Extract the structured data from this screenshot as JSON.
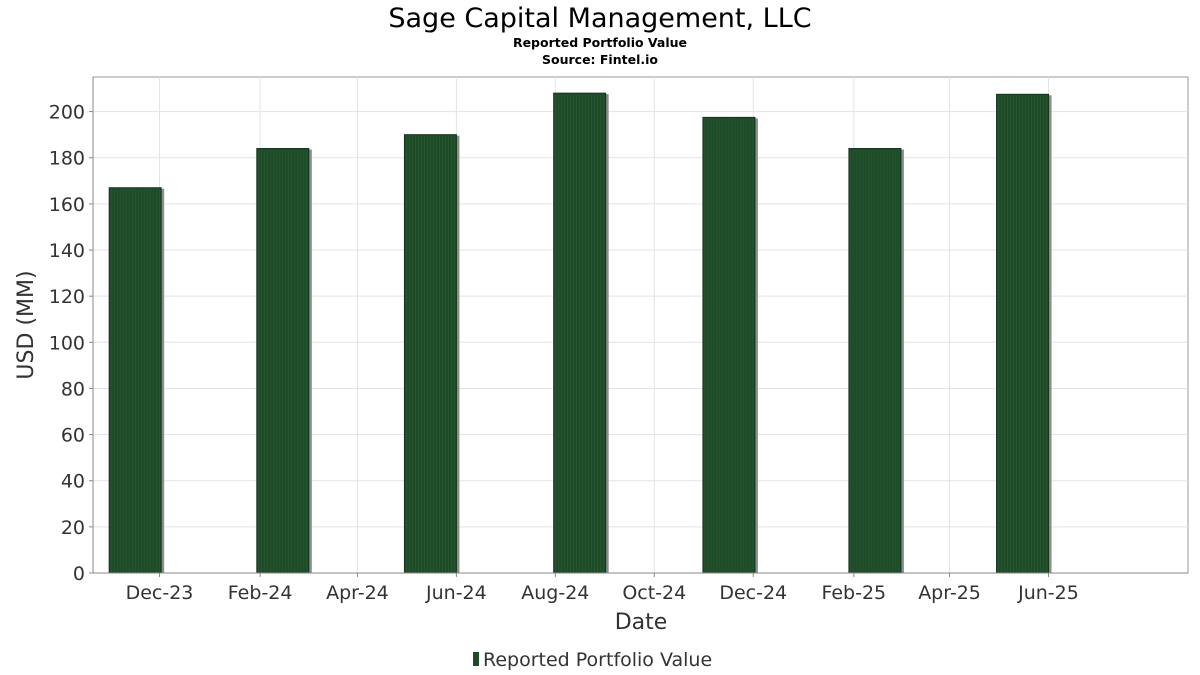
{
  "chart_data": {
    "type": "bar",
    "title": "Sage Capital Management, LLC",
    "subtitle": "Reported Portfolio Value",
    "source": "Source: Fintel.io",
    "xlabel": "Date",
    "ylabel": "USD (MM)",
    "ylim": [
      0,
      215
    ],
    "yticks": [
      0,
      20,
      40,
      60,
      80,
      100,
      120,
      140,
      160,
      180,
      200
    ],
    "xlim": [
      "2023-10-21",
      "2025-08-26"
    ],
    "xticks": [
      {
        "date": "2023-12-01",
        "label": "Dec-23"
      },
      {
        "date": "2024-02-01",
        "label": "Feb-24"
      },
      {
        "date": "2024-04-01",
        "label": "Apr-24"
      },
      {
        "date": "2024-06-01",
        "label": "Jun-24"
      },
      {
        "date": "2024-08-01",
        "label": "Aug-24"
      },
      {
        "date": "2024-10-01",
        "label": "Oct-24"
      },
      {
        "date": "2024-12-01",
        "label": "Dec-24"
      },
      {
        "date": "2025-02-01",
        "label": "Feb-25"
      },
      {
        "date": "2025-04-01",
        "label": "Apr-25"
      },
      {
        "date": "2025-06-01",
        "label": "Jun-25"
      }
    ],
    "series": [
      {
        "name": "Reported Portfolio Value",
        "color": "#1e4a28",
        "points": [
          {
            "date": "2023-12-31",
            "value": 167
          },
          {
            "date": "2024-03-31",
            "value": 184
          },
          {
            "date": "2024-06-30",
            "value": 190
          },
          {
            "date": "2024-09-30",
            "value": 208
          },
          {
            "date": "2024-12-31",
            "value": 197.5
          },
          {
            "date": "2025-03-31",
            "value": 184
          },
          {
            "date": "2025-06-30",
            "value": 207.5
          }
        ]
      }
    ],
    "grid": true,
    "legend": "bottom-center"
  }
}
